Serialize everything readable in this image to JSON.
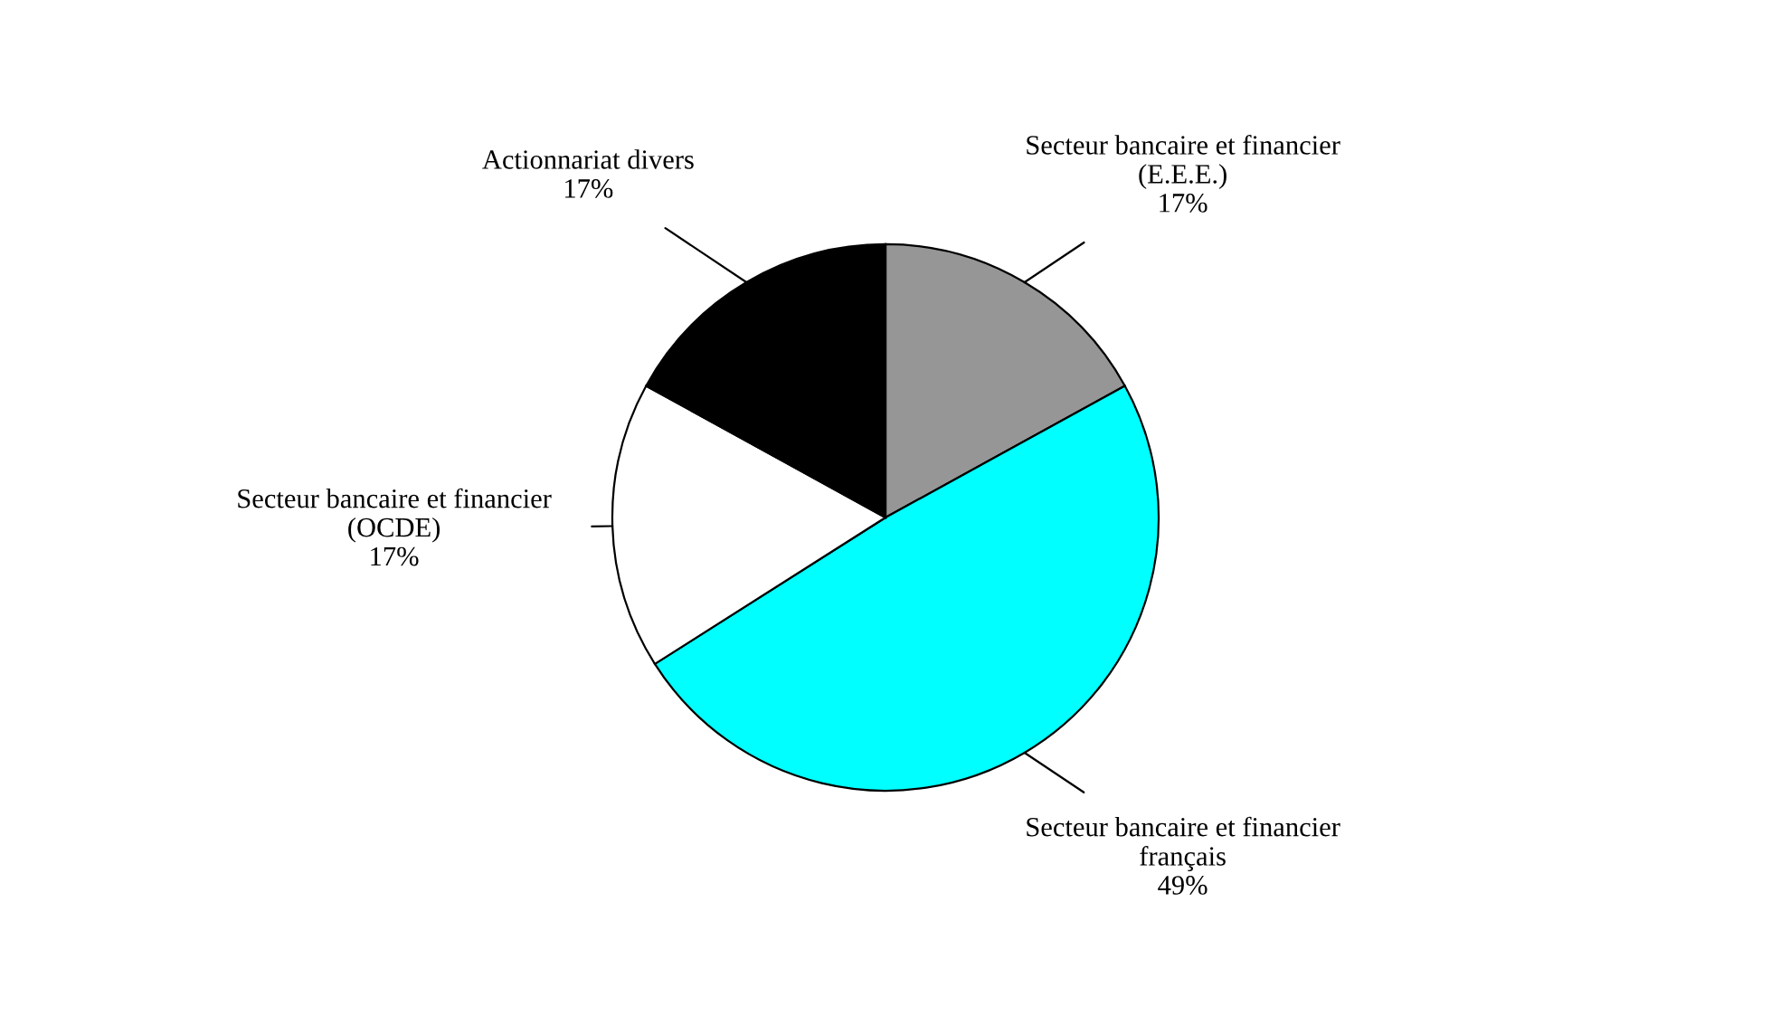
{
  "chart_data": {
    "type": "pie",
    "categories": [
      "Secteur bancaire et financier\n(E.E.E.)",
      "Secteur bancaire et financier\nfrançais",
      "Secteur bancaire et financier\n(OCDE)",
      "Actionnariat divers"
    ],
    "values": [
      17,
      49,
      17,
      17
    ],
    "colors": [
      "#969696",
      "#00ffff",
      "#ffffff",
      "#000000"
    ],
    "value_labels": [
      "17%",
      "49%",
      "17%",
      "17%"
    ]
  }
}
